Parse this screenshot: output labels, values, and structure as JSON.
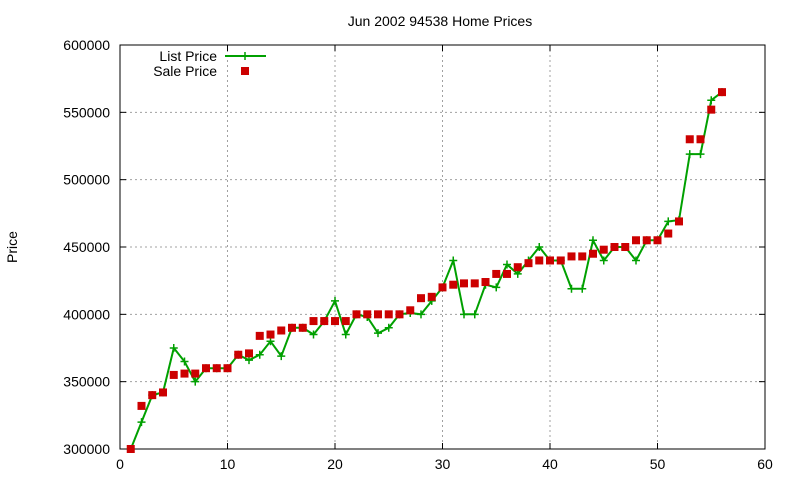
{
  "chart_data": {
    "type": "line",
    "title": "Jun 2002 94538 Home Prices",
    "xlabel": "",
    "ylabel": "Price",
    "xlim": [
      0,
      60
    ],
    "ylim": [
      300000,
      600000
    ],
    "x_ticks": [
      "0",
      "10",
      "20",
      "30",
      "40",
      "50",
      "60"
    ],
    "y_ticks": [
      "300000",
      "350000",
      "400000",
      "450000",
      "500000",
      "550000",
      "600000"
    ],
    "grid": true,
    "legend_position": "top-left",
    "series": [
      {
        "name": "List Price",
        "kind": "line-with-plus-markers",
        "color": "#00a000",
        "x": [
          1,
          2,
          3,
          4,
          5,
          6,
          7,
          8,
          9,
          10,
          11,
          12,
          13,
          14,
          15,
          16,
          17,
          18,
          19,
          20,
          21,
          22,
          23,
          24,
          25,
          26,
          27,
          28,
          29,
          30,
          31,
          32,
          33,
          34,
          35,
          36,
          37,
          38,
          39,
          40,
          41,
          42,
          43,
          44,
          45,
          46,
          47,
          48,
          49,
          50,
          51,
          52,
          53,
          54,
          55,
          56
        ],
        "y": [
          300000,
          320000,
          340000,
          342000,
          375000,
          365000,
          350000,
          360000,
          360000,
          360000,
          370000,
          366000,
          370000,
          380000,
          369000,
          390000,
          390000,
          385000,
          395000,
          410000,
          385000,
          400000,
          398000,
          386000,
          390000,
          400000,
          401000,
          400000,
          410000,
          420000,
          440000,
          400000,
          400000,
          422000,
          420000,
          437000,
          430000,
          440000,
          450000,
          440000,
          440000,
          419000,
          419000,
          455000,
          440000,
          450000,
          450000,
          440000,
          455000,
          455000,
          469000,
          470000,
          519000,
          519000,
          559000,
          565000
        ]
      },
      {
        "name": "Sale Price",
        "kind": "square-markers",
        "color": "#cc0000",
        "x": [
          1,
          2,
          3,
          4,
          5,
          6,
          7,
          8,
          9,
          10,
          11,
          12,
          13,
          14,
          15,
          16,
          17,
          18,
          19,
          20,
          21,
          22,
          23,
          24,
          25,
          26,
          27,
          28,
          29,
          30,
          31,
          32,
          33,
          34,
          35,
          36,
          37,
          38,
          39,
          40,
          41,
          42,
          43,
          44,
          45,
          46,
          47,
          48,
          49,
          50,
          51,
          52,
          53,
          54,
          55,
          56
        ],
        "y": [
          300000,
          332000,
          340000,
          342000,
          355000,
          356000,
          356000,
          360000,
          360000,
          360000,
          370000,
          371000,
          384000,
          385000,
          388000,
          390000,
          390000,
          395000,
          395000,
          395000,
          395000,
          400000,
          400000,
          400000,
          400000,
          400000,
          403000,
          412000,
          413000,
          420000,
          422000,
          423000,
          423000,
          424000,
          430000,
          430000,
          435000,
          438000,
          440000,
          440000,
          440000,
          443000,
          443000,
          445000,
          448000,
          450000,
          450000,
          455000,
          455000,
          455000,
          460000,
          469000,
          530000,
          530000,
          552000,
          565000
        ]
      }
    ]
  }
}
